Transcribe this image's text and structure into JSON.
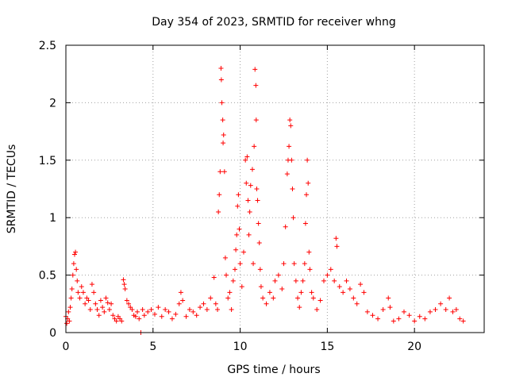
{
  "chart_data": {
    "type": "scatter",
    "title": "Day 354 of 2023, SRMTID for receiver whng",
    "xlabel": "GPS time / hours",
    "ylabel": "SRMTID / TECUs",
    "xlim": [
      0,
      24
    ],
    "ylim": [
      0,
      2.5
    ],
    "xticks": [
      0,
      5,
      10,
      15,
      20
    ],
    "xtick_labels": [
      "0",
      "5",
      "10",
      "15",
      "20"
    ],
    "yticks": [
      0,
      0.5,
      1,
      1.5,
      2,
      2.5
    ],
    "ytick_labels": [
      "0",
      "0.5",
      "1",
      "1.5",
      "2",
      "2.5"
    ],
    "grid": true,
    "marker": "+",
    "marker_color": "#ff0000",
    "series": [
      {
        "name": "SRMTID",
        "points": [
          [
            0.0,
            0.14
          ],
          [
            0.05,
            0.08
          ],
          [
            0.1,
            0.12
          ],
          [
            0.15,
            0.18
          ],
          [
            0.2,
            0.1
          ],
          [
            0.25,
            0.22
          ],
          [
            0.3,
            0.3
          ],
          [
            0.35,
            0.38
          ],
          [
            0.4,
            0.5
          ],
          [
            0.45,
            0.6
          ],
          [
            0.5,
            0.68
          ],
          [
            0.55,
            0.7
          ],
          [
            0.6,
            0.55
          ],
          [
            0.65,
            0.45
          ],
          [
            0.7,
            0.35
          ],
          [
            0.8,
            0.3
          ],
          [
            0.9,
            0.4
          ],
          [
            1.0,
            0.35
          ],
          [
            1.1,
            0.25
          ],
          [
            1.2,
            0.3
          ],
          [
            1.3,
            0.28
          ],
          [
            1.4,
            0.2
          ],
          [
            1.5,
            0.42
          ],
          [
            1.6,
            0.35
          ],
          [
            1.7,
            0.25
          ],
          [
            1.8,
            0.2
          ],
          [
            1.9,
            0.15
          ],
          [
            2.0,
            0.28
          ],
          [
            2.1,
            0.22
          ],
          [
            2.2,
            0.18
          ],
          [
            2.3,
            0.3
          ],
          [
            2.4,
            0.26
          ],
          [
            2.5,
            0.2
          ],
          [
            2.6,
            0.25
          ],
          [
            2.7,
            0.15
          ],
          [
            2.8,
            0.12
          ],
          [
            2.9,
            0.1
          ],
          [
            3.0,
            0.14
          ],
          [
            3.1,
            0.12
          ],
          [
            3.2,
            0.1
          ],
          [
            3.3,
            0.46
          ],
          [
            3.35,
            0.42
          ],
          [
            3.4,
            0.38
          ],
          [
            3.5,
            0.28
          ],
          [
            3.6,
            0.25
          ],
          [
            3.7,
            0.22
          ],
          [
            3.8,
            0.2
          ],
          [
            3.9,
            0.15
          ],
          [
            4.0,
            0.14
          ],
          [
            4.1,
            0.18
          ],
          [
            4.2,
            0.12
          ],
          [
            4.3,
            0.0
          ],
          [
            4.4,
            0.2
          ],
          [
            4.5,
            0.15
          ],
          [
            4.7,
            0.18
          ],
          [
            4.9,
            0.2
          ],
          [
            5.1,
            0.16
          ],
          [
            5.3,
            0.22
          ],
          [
            5.5,
            0.14
          ],
          [
            5.7,
            0.2
          ],
          [
            5.9,
            0.18
          ],
          [
            6.1,
            0.12
          ],
          [
            6.3,
            0.16
          ],
          [
            6.5,
            0.25
          ],
          [
            6.6,
            0.35
          ],
          [
            6.7,
            0.28
          ],
          [
            6.9,
            0.14
          ],
          [
            7.1,
            0.2
          ],
          [
            7.3,
            0.18
          ],
          [
            7.5,
            0.15
          ],
          [
            7.7,
            0.22
          ],
          [
            7.9,
            0.25
          ],
          [
            8.1,
            0.2
          ],
          [
            8.3,
            0.3
          ],
          [
            8.5,
            0.48
          ],
          [
            8.6,
            0.25
          ],
          [
            8.7,
            0.2
          ],
          [
            8.75,
            1.05
          ],
          [
            8.8,
            1.2
          ],
          [
            8.85,
            1.4
          ],
          [
            8.9,
            2.3
          ],
          [
            8.92,
            2.2
          ],
          [
            8.95,
            2.0
          ],
          [
            9.0,
            1.85
          ],
          [
            9.02,
            1.65
          ],
          [
            9.05,
            1.72
          ],
          [
            9.1,
            1.4
          ],
          [
            9.15,
            0.65
          ],
          [
            9.2,
            0.5
          ],
          [
            9.3,
            0.3
          ],
          [
            9.4,
            0.35
          ],
          [
            9.5,
            0.2
          ],
          [
            9.6,
            0.45
          ],
          [
            9.7,
            0.55
          ],
          [
            9.75,
            0.72
          ],
          [
            9.8,
            0.85
          ],
          [
            9.85,
            1.1
          ],
          [
            9.9,
            1.2
          ],
          [
            9.95,
            0.9
          ],
          [
            10.0,
            0.6
          ],
          [
            10.1,
            0.4
          ],
          [
            10.2,
            0.7
          ],
          [
            10.3,
            1.5
          ],
          [
            10.35,
            1.3
          ],
          [
            10.4,
            1.53
          ],
          [
            10.45,
            1.15
          ],
          [
            10.5,
            0.85
          ],
          [
            10.55,
            1.05
          ],
          [
            10.6,
            1.28
          ],
          [
            10.7,
            1.42
          ],
          [
            10.75,
            0.6
          ],
          [
            10.8,
            1.62
          ],
          [
            10.85,
            2.29
          ],
          [
            10.9,
            2.15
          ],
          [
            10.92,
            1.85
          ],
          [
            10.95,
            1.25
          ],
          [
            11.0,
            1.15
          ],
          [
            11.05,
            0.95
          ],
          [
            11.1,
            0.78
          ],
          [
            11.15,
            0.55
          ],
          [
            11.2,
            0.4
          ],
          [
            11.3,
            0.3
          ],
          [
            11.5,
            0.25
          ],
          [
            11.7,
            0.35
          ],
          [
            11.9,
            0.3
          ],
          [
            12.0,
            0.45
          ],
          [
            12.2,
            0.5
          ],
          [
            12.4,
            0.38
          ],
          [
            12.5,
            0.6
          ],
          [
            12.6,
            0.92
          ],
          [
            12.7,
            1.38
          ],
          [
            12.75,
            1.5
          ],
          [
            12.8,
            1.62
          ],
          [
            12.85,
            1.85
          ],
          [
            12.9,
            1.8
          ],
          [
            12.95,
            1.5
          ],
          [
            13.0,
            1.25
          ],
          [
            13.05,
            1.0
          ],
          [
            13.1,
            0.6
          ],
          [
            13.2,
            0.45
          ],
          [
            13.3,
            0.3
          ],
          [
            13.4,
            0.22
          ],
          [
            13.5,
            0.35
          ],
          [
            13.6,
            0.45
          ],
          [
            13.7,
            0.6
          ],
          [
            13.75,
            0.95
          ],
          [
            13.8,
            1.2
          ],
          [
            13.85,
            1.5
          ],
          [
            13.9,
            1.3
          ],
          [
            13.95,
            0.7
          ],
          [
            14.0,
            0.55
          ],
          [
            14.1,
            0.35
          ],
          [
            14.2,
            0.3
          ],
          [
            14.4,
            0.2
          ],
          [
            14.6,
            0.28
          ],
          [
            14.8,
            0.45
          ],
          [
            15.0,
            0.5
          ],
          [
            15.2,
            0.55
          ],
          [
            15.4,
            0.45
          ],
          [
            15.5,
            0.82
          ],
          [
            15.55,
            0.75
          ],
          [
            15.7,
            0.4
          ],
          [
            15.9,
            0.35
          ],
          [
            16.1,
            0.45
          ],
          [
            16.3,
            0.38
          ],
          [
            16.5,
            0.3
          ],
          [
            16.7,
            0.25
          ],
          [
            16.9,
            0.42
          ],
          [
            17.1,
            0.35
          ],
          [
            17.3,
            0.18
          ],
          [
            17.6,
            0.15
          ],
          [
            17.9,
            0.12
          ],
          [
            18.2,
            0.2
          ],
          [
            18.5,
            0.3
          ],
          [
            18.6,
            0.22
          ],
          [
            18.8,
            0.1
          ],
          [
            19.1,
            0.12
          ],
          [
            19.4,
            0.18
          ],
          [
            19.7,
            0.15
          ],
          [
            20.0,
            0.1
          ],
          [
            20.3,
            0.14
          ],
          [
            20.6,
            0.12
          ],
          [
            20.9,
            0.18
          ],
          [
            21.2,
            0.2
          ],
          [
            21.5,
            0.25
          ],
          [
            21.8,
            0.2
          ],
          [
            22.0,
            0.3
          ],
          [
            22.2,
            0.18
          ],
          [
            22.4,
            0.2
          ],
          [
            22.6,
            0.12
          ],
          [
            22.8,
            0.1
          ]
        ]
      }
    ]
  }
}
